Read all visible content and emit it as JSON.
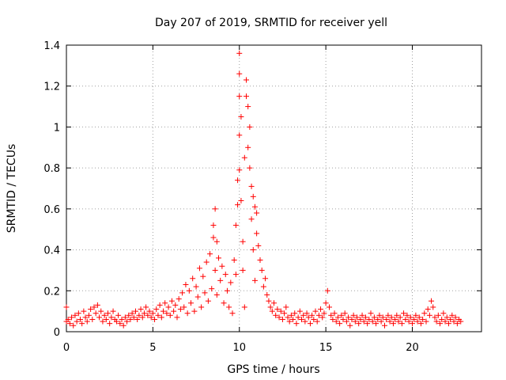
{
  "chart_data": {
    "type": "scatter",
    "title": "Day 207 of 2019, SRMTID for receiver yell",
    "xlabel": "GPS time / hours",
    "ylabel": "SRMTID / TECUs",
    "xlim": [
      0,
      24
    ],
    "ylim": [
      0,
      1.4
    ],
    "xticks": [
      0,
      5,
      10,
      15,
      20
    ],
    "xtick_labels": [
      "0",
      "5",
      "10",
      "15",
      "20"
    ],
    "yticks": [
      0,
      0.2,
      0.4,
      0.6,
      0.8,
      1.0,
      1.2,
      1.4
    ],
    "ytick_labels": [
      "0",
      "0.2",
      "0.4",
      "0.6",
      "0.8",
      "1",
      "1.2",
      "1.4"
    ],
    "grid": true,
    "marker": "+",
    "color": "#ff0000",
    "series": [
      {
        "name": "SRMTID",
        "points": [
          [
            0.0,
            0.12
          ],
          [
            0.0,
            0.05
          ],
          [
            0.1,
            0.06
          ],
          [
            0.2,
            0.04
          ],
          [
            0.3,
            0.07
          ],
          [
            0.4,
            0.03
          ],
          [
            0.5,
            0.08
          ],
          [
            0.6,
            0.05
          ],
          [
            0.7,
            0.09
          ],
          [
            0.8,
            0.06
          ],
          [
            0.9,
            0.04
          ],
          [
            1.0,
            0.1
          ],
          [
            1.1,
            0.07
          ],
          [
            1.2,
            0.05
          ],
          [
            1.3,
            0.08
          ],
          [
            1.4,
            0.11
          ],
          [
            1.5,
            0.06
          ],
          [
            1.6,
            0.12
          ],
          [
            1.7,
            0.09
          ],
          [
            1.8,
            0.13
          ],
          [
            1.9,
            0.07
          ],
          [
            2.0,
            0.1
          ],
          [
            2.1,
            0.05
          ],
          [
            2.2,
            0.08
          ],
          [
            2.3,
            0.06
          ],
          [
            2.4,
            0.09
          ],
          [
            2.5,
            0.04
          ],
          [
            2.6,
            0.07
          ],
          [
            2.7,
            0.1
          ],
          [
            2.8,
            0.06
          ],
          [
            2.9,
            0.05
          ],
          [
            3.0,
            0.08
          ],
          [
            3.1,
            0.04
          ],
          [
            3.2,
            0.06
          ],
          [
            3.3,
            0.03
          ],
          [
            3.4,
            0.07
          ],
          [
            3.5,
            0.05
          ],
          [
            3.6,
            0.08
          ],
          [
            3.7,
            0.06
          ],
          [
            3.8,
            0.09
          ],
          [
            3.9,
            0.07
          ],
          [
            4.0,
            0.1
          ],
          [
            4.1,
            0.06
          ],
          [
            4.2,
            0.08
          ],
          [
            4.3,
            0.11
          ],
          [
            4.4,
            0.07
          ],
          [
            4.5,
            0.09
          ],
          [
            4.6,
            0.12
          ],
          [
            4.7,
            0.08
          ],
          [
            4.8,
            0.1
          ],
          [
            4.9,
            0.07
          ],
          [
            5.0,
            0.09
          ],
          [
            5.1,
            0.06
          ],
          [
            5.2,
            0.11
          ],
          [
            5.3,
            0.08
          ],
          [
            5.4,
            0.13
          ],
          [
            5.5,
            0.07
          ],
          [
            5.6,
            0.1
          ],
          [
            5.7,
            0.14
          ],
          [
            5.8,
            0.09
          ],
          [
            5.9,
            0.12
          ],
          [
            6.0,
            0.08
          ],
          [
            6.1,
            0.15
          ],
          [
            6.2,
            0.1
          ],
          [
            6.3,
            0.13
          ],
          [
            6.4,
            0.07
          ],
          [
            6.5,
            0.16
          ],
          [
            6.6,
            0.11
          ],
          [
            6.7,
            0.19
          ],
          [
            6.8,
            0.12
          ],
          [
            6.9,
            0.23
          ],
          [
            7.0,
            0.09
          ],
          [
            7.1,
            0.2
          ],
          [
            7.2,
            0.14
          ],
          [
            7.3,
            0.26
          ],
          [
            7.4,
            0.1
          ],
          [
            7.5,
            0.22
          ],
          [
            7.6,
            0.17
          ],
          [
            7.7,
            0.31
          ],
          [
            7.8,
            0.12
          ],
          [
            7.9,
            0.27
          ],
          [
            8.0,
            0.19
          ],
          [
            8.1,
            0.34
          ],
          [
            8.2,
            0.15
          ],
          [
            8.3,
            0.38
          ],
          [
            8.4,
            0.21
          ],
          [
            8.5,
            0.52
          ],
          [
            8.5,
            0.46
          ],
          [
            8.6,
            0.6
          ],
          [
            8.6,
            0.3
          ],
          [
            8.7,
            0.44
          ],
          [
            8.7,
            0.18
          ],
          [
            8.8,
            0.36
          ],
          [
            8.9,
            0.25
          ],
          [
            9.0,
            0.32
          ],
          [
            9.1,
            0.14
          ],
          [
            9.2,
            0.28
          ],
          [
            9.3,
            0.2
          ],
          [
            9.4,
            0.12
          ],
          [
            9.5,
            0.24
          ],
          [
            9.6,
            0.09
          ],
          [
            9.7,
            0.35
          ],
          [
            9.8,
            0.52
          ],
          [
            9.8,
            0.28
          ],
          [
            9.9,
            0.62
          ],
          [
            9.9,
            0.74
          ],
          [
            10.0,
            0.79
          ],
          [
            10.0,
            0.96
          ],
          [
            10.0,
            1.15
          ],
          [
            10.0,
            1.36
          ],
          [
            10.0,
            1.26
          ],
          [
            10.1,
            1.05
          ],
          [
            10.1,
            0.64
          ],
          [
            10.2,
            0.44
          ],
          [
            10.2,
            0.3
          ],
          [
            10.3,
            0.85
          ],
          [
            10.3,
            0.12
          ],
          [
            10.4,
            1.23
          ],
          [
            10.4,
            1.15
          ],
          [
            10.5,
            1.1
          ],
          [
            10.5,
            0.9
          ],
          [
            10.6,
            1.0
          ],
          [
            10.6,
            0.8
          ],
          [
            10.7,
            0.71
          ],
          [
            10.7,
            0.55
          ],
          [
            10.8,
            0.66
          ],
          [
            10.8,
            0.4
          ],
          [
            10.9,
            0.61
          ],
          [
            10.9,
            0.25
          ],
          [
            11.0,
            0.58
          ],
          [
            11.0,
            0.48
          ],
          [
            11.1,
            0.42
          ],
          [
            11.2,
            0.35
          ],
          [
            11.3,
            0.3
          ],
          [
            11.4,
            0.22
          ],
          [
            11.5,
            0.26
          ],
          [
            11.6,
            0.18
          ],
          [
            11.7,
            0.15
          ],
          [
            11.8,
            0.12
          ],
          [
            11.9,
            0.1
          ],
          [
            12.0,
            0.14
          ],
          [
            12.1,
            0.08
          ],
          [
            12.2,
            0.11
          ],
          [
            12.3,
            0.07
          ],
          [
            12.4,
            0.1
          ],
          [
            12.5,
            0.06
          ],
          [
            12.6,
            0.09
          ],
          [
            12.7,
            0.12
          ],
          [
            12.8,
            0.07
          ],
          [
            12.9,
            0.05
          ],
          [
            13.0,
            0.08
          ],
          [
            13.1,
            0.06
          ],
          [
            13.2,
            0.09
          ],
          [
            13.3,
            0.04
          ],
          [
            13.4,
            0.07
          ],
          [
            13.5,
            0.1
          ],
          [
            13.6,
            0.06
          ],
          [
            13.7,
            0.08
          ],
          [
            13.8,
            0.05
          ],
          [
            13.9,
            0.09
          ],
          [
            14.0,
            0.07
          ],
          [
            14.1,
            0.04
          ],
          [
            14.2,
            0.08
          ],
          [
            14.3,
            0.06
          ],
          [
            14.4,
            0.1
          ],
          [
            14.5,
            0.05
          ],
          [
            14.6,
            0.08
          ],
          [
            14.7,
            0.11
          ],
          [
            14.8,
            0.07
          ],
          [
            14.9,
            0.09
          ],
          [
            15.0,
            0.14
          ],
          [
            15.1,
            0.2
          ],
          [
            15.2,
            0.12
          ],
          [
            15.3,
            0.08
          ],
          [
            15.4,
            0.06
          ],
          [
            15.5,
            0.09
          ],
          [
            15.6,
            0.05
          ],
          [
            15.7,
            0.07
          ],
          [
            15.8,
            0.04
          ],
          [
            15.9,
            0.08
          ],
          [
            16.0,
            0.06
          ],
          [
            16.1,
            0.09
          ],
          [
            16.2,
            0.05
          ],
          [
            16.3,
            0.07
          ],
          [
            16.4,
            0.03
          ],
          [
            16.5,
            0.06
          ],
          [
            16.6,
            0.08
          ],
          [
            16.7,
            0.05
          ],
          [
            16.8,
            0.07
          ],
          [
            16.9,
            0.04
          ],
          [
            17.0,
            0.06
          ],
          [
            17.1,
            0.08
          ],
          [
            17.2,
            0.05
          ],
          [
            17.3,
            0.07
          ],
          [
            17.4,
            0.04
          ],
          [
            17.5,
            0.06
          ],
          [
            17.6,
            0.09
          ],
          [
            17.7,
            0.05
          ],
          [
            17.8,
            0.07
          ],
          [
            17.9,
            0.04
          ],
          [
            18.0,
            0.06
          ],
          [
            18.1,
            0.08
          ],
          [
            18.2,
            0.05
          ],
          [
            18.3,
            0.07
          ],
          [
            18.4,
            0.03
          ],
          [
            18.5,
            0.06
          ],
          [
            18.6,
            0.08
          ],
          [
            18.7,
            0.05
          ],
          [
            18.8,
            0.07
          ],
          [
            18.9,
            0.04
          ],
          [
            19.0,
            0.06
          ],
          [
            19.1,
            0.08
          ],
          [
            19.2,
            0.05
          ],
          [
            19.3,
            0.07
          ],
          [
            19.4,
            0.04
          ],
          [
            19.5,
            0.09
          ],
          [
            19.6,
            0.06
          ],
          [
            19.7,
            0.08
          ],
          [
            19.8,
            0.05
          ],
          [
            19.9,
            0.07
          ],
          [
            20.0,
            0.04
          ],
          [
            20.1,
            0.06
          ],
          [
            20.2,
            0.08
          ],
          [
            20.3,
            0.05
          ],
          [
            20.4,
            0.07
          ],
          [
            20.5,
            0.04
          ],
          [
            20.6,
            0.06
          ],
          [
            20.7,
            0.09
          ],
          [
            20.8,
            0.05
          ],
          [
            20.9,
            0.11
          ],
          [
            21.0,
            0.08
          ],
          [
            21.1,
            0.15
          ],
          [
            21.2,
            0.12
          ],
          [
            21.3,
            0.07
          ],
          [
            21.4,
            0.05
          ],
          [
            21.5,
            0.08
          ],
          [
            21.6,
            0.04
          ],
          [
            21.7,
            0.06
          ],
          [
            21.8,
            0.09
          ],
          [
            21.9,
            0.05
          ],
          [
            22.0,
            0.07
          ],
          [
            22.1,
            0.04
          ],
          [
            22.2,
            0.06
          ],
          [
            22.3,
            0.08
          ],
          [
            22.4,
            0.05
          ],
          [
            22.5,
            0.07
          ],
          [
            22.6,
            0.04
          ],
          [
            22.7,
            0.06
          ],
          [
            22.8,
            0.05
          ]
        ]
      }
    ]
  }
}
